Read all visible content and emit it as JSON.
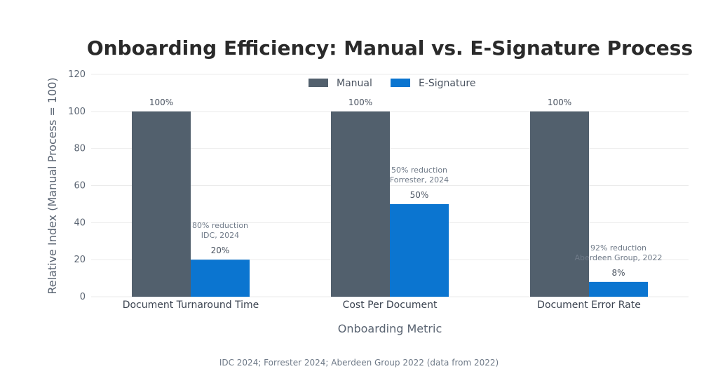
{
  "chart_data": {
    "type": "bar",
    "title": "Onboarding Efficiency: Manual vs. E-Signature Process",
    "xlabel": "Onboarding Metric",
    "ylabel": "Relative Index (Manual Process = 100)",
    "ylim": [
      0,
      120
    ],
    "yticks": [
      0,
      20,
      40,
      60,
      80,
      100,
      120
    ],
    "grid": true,
    "legend_position": "top-center",
    "categories": [
      "Document Turnaround Time",
      "Cost Per Document",
      "Document Error Rate"
    ],
    "series": [
      {
        "name": "Manual",
        "color": "#52606d",
        "values": [
          100,
          100,
          100
        ],
        "labels": [
          "100%",
          "100%",
          "100%"
        ]
      },
      {
        "name": "E-Signature",
        "color": "#0b75d0",
        "values": [
          20,
          50,
          8
        ],
        "labels": [
          "20%",
          "50%",
          "8%"
        ]
      }
    ],
    "annotations": [
      {
        "category": "Document Turnaround Time",
        "line1": "80% reduction",
        "line2": "IDC, 2024"
      },
      {
        "category": "Cost Per Document",
        "line1": "50% reduction",
        "line2": "Forrester, 2024"
      },
      {
        "category": "Document Error Rate",
        "line1": "92% reduction",
        "line2": "Aberdeen Group, 2022"
      }
    ],
    "source": "IDC 2024; Forrester 2024; Aberdeen Group 2022 (data from 2022)"
  }
}
